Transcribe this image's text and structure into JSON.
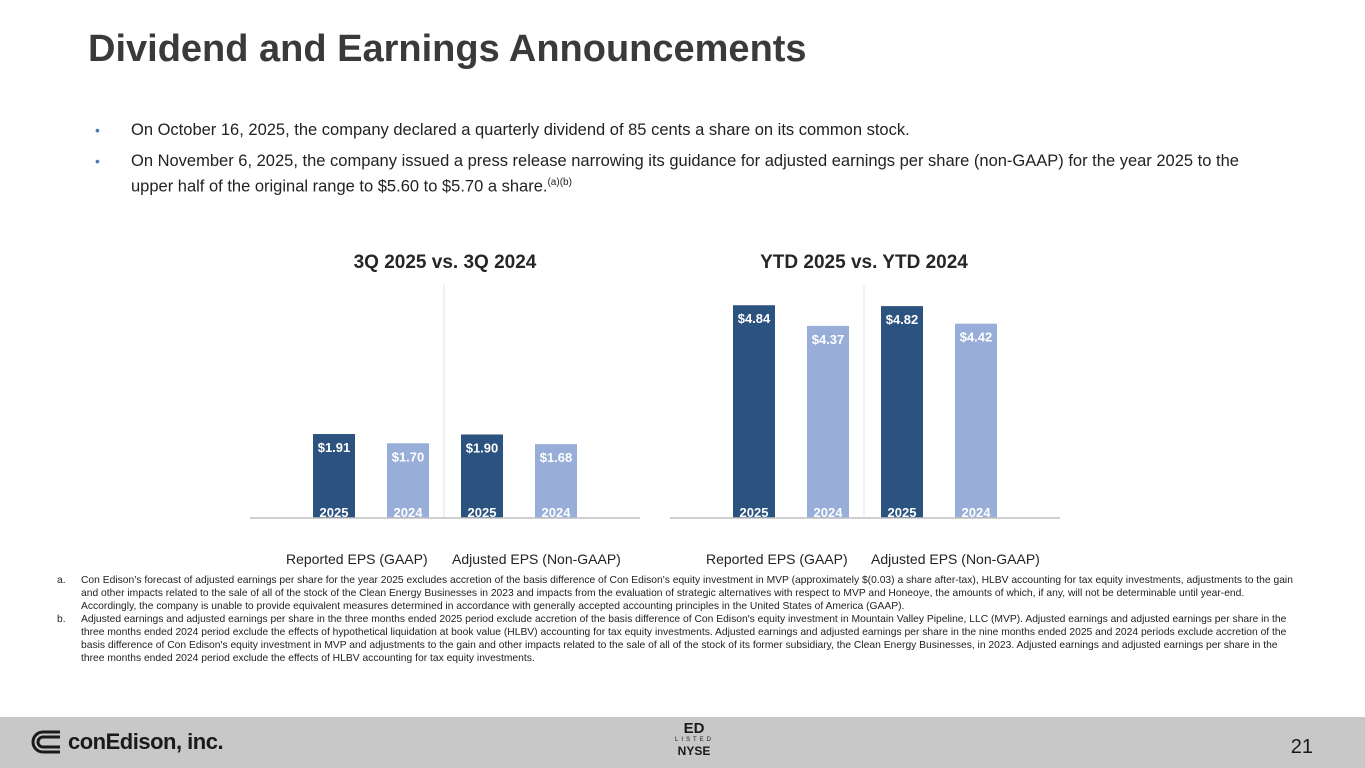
{
  "title": "Dividend and Earnings Announcements",
  "bullets": [
    {
      "text": "On October 16, 2025, the company declared a quarterly dividend of 85 cents a share on its common stock.",
      "sup": ""
    },
    {
      "text": "On November 6, 2025, the company issued a press release narrowing its guidance for adjusted earnings per share (non-GAAP) for the year 2025 to the upper half of the original range to $5.60 to $5.70 a share.",
      "sup": "(a)(b)"
    }
  ],
  "bullet_marker": "•",
  "colors": {
    "dark_bar": "#2c5380",
    "light_bar": "#98aed8",
    "axis": "#bfbfbf"
  },
  "chart_data": [
    {
      "type": "bar",
      "title": "3Q 2025 vs. 3Q 2024",
      "groups": [
        "Reported EPS (GAAP)",
        "Adjusted EPS (Non-GAAP)"
      ],
      "series": [
        {
          "name": "2025",
          "values": [
            1.91,
            1.9
          ],
          "labels": [
            "$1.91",
            "$1.90"
          ]
        },
        {
          "name": "2024",
          "values": [
            1.7,
            1.68
          ],
          "labels": [
            "$1.70",
            "$1.68"
          ]
        }
      ],
      "ylim": [
        0,
        5.3
      ],
      "xlabel": "",
      "ylabel": ""
    },
    {
      "type": "bar",
      "title": "YTD 2025 vs. YTD 2024",
      "groups": [
        "Reported EPS (GAAP)",
        "Adjusted EPS (Non-GAAP)"
      ],
      "series": [
        {
          "name": "2025",
          "values": [
            4.84,
            4.82
          ],
          "labels": [
            "$4.84",
            "$4.82"
          ]
        },
        {
          "name": "2024",
          "values": [
            4.37,
            4.42
          ],
          "labels": [
            "$4.37",
            "$4.42"
          ]
        }
      ],
      "ylim": [
        0,
        5.3
      ],
      "xlabel": "",
      "ylabel": ""
    }
  ],
  "footnotes": [
    {
      "key": "a.",
      "text": "Con Edison’s forecast of adjusted earnings per share for the year 2025 excludes accretion of the basis difference of Con Edison's equity investment in MVP (approximately $(0.03) a share after-tax), HLBV accounting for tax equity investments, adjustments to the gain and other impacts related to the sale of all of the stock of the Clean Energy Businesses in 2023 and impacts from the evaluation of strategic alternatives with respect to MVP and Honeoye, the amounts of which, if any, will not be determinable until year-end. Accordingly, the company is unable to provide equivalent measures determined in accordance with generally accepted accounting principles in the United States of America (GAAP)."
    },
    {
      "key": "b.",
      "text": "Adjusted earnings and adjusted earnings per share in the three months ended 2025 period exclude accretion of the basis difference of Con Edison's equity investment in Mountain Valley Pipeline, LLC (MVP). Adjusted earnings and adjusted earnings per share in the three months ended 2024 period exclude the effects of hypothetical liquidation at book value (HLBV) accounting for tax equity investments. Adjusted earnings and adjusted earnings per share in the nine months ended 2025 and 2024 periods exclude accretion of the basis difference of Con Edison's equity investment in MVP and adjustments to the gain and other impacts related to the sale of all of the stock of its former subsidiary, the Clean Energy Businesses, in 2023. Adjusted earnings and adjusted earnings per share in the three months ended 2024 period exclude the effects of HLBV accounting for tax equity investments."
    }
  ],
  "footer": {
    "logo_text": "conEdison, inc.",
    "logo_icon": "con-edison-logo-icon",
    "nyse_top": "ED",
    "nyse_mid": "LISTED",
    "nyse_bottom": "NYSE",
    "page_number": "21"
  }
}
